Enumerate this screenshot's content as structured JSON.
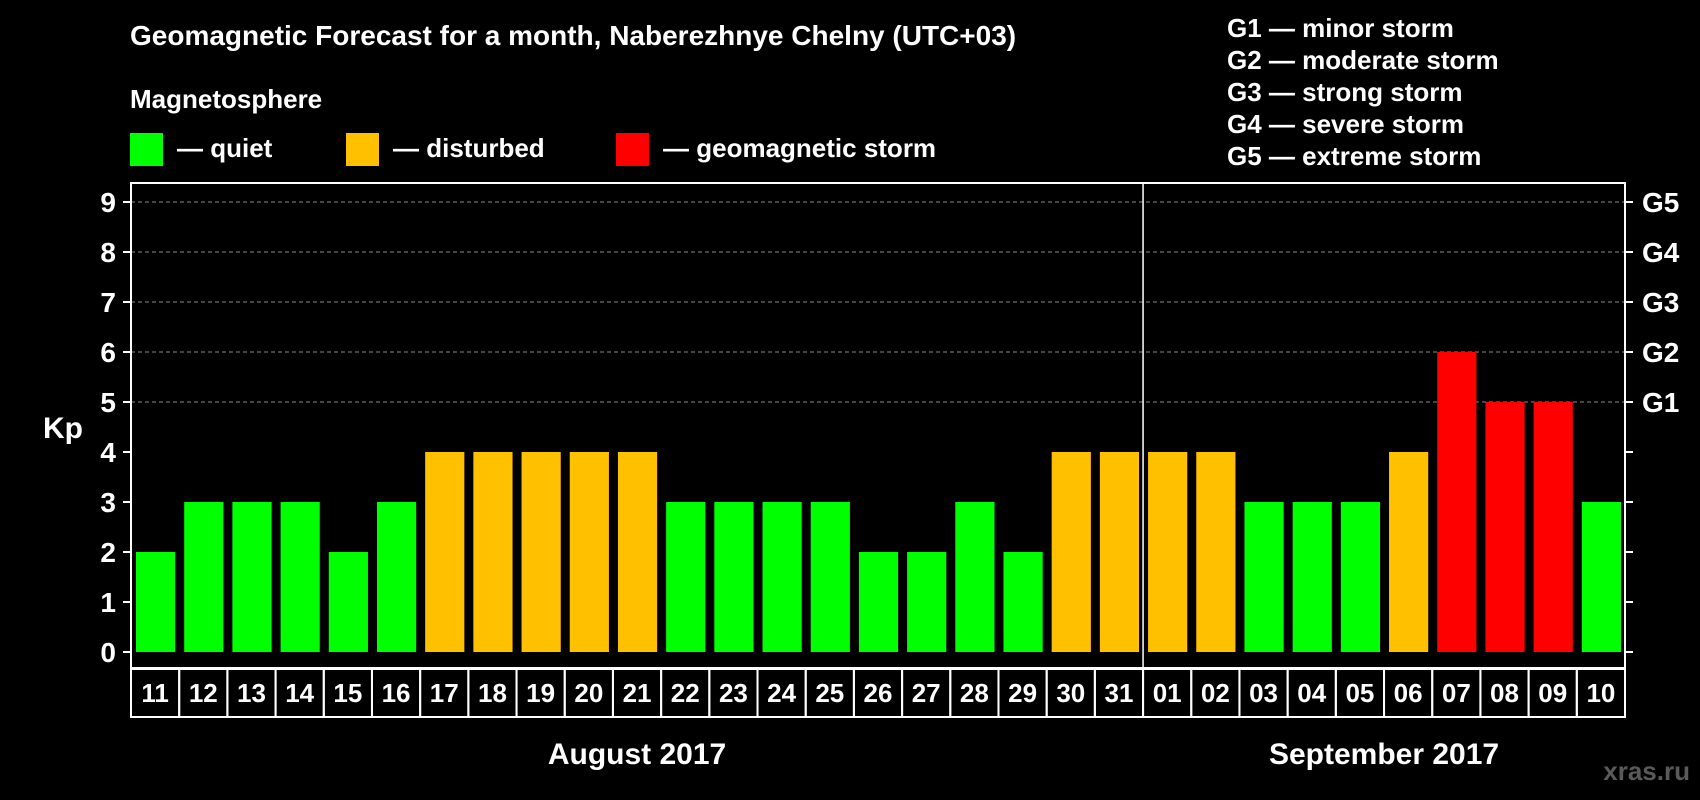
{
  "title": "Geomagnetic Forecast for a month, Naberezhnye Chelny (UTC+03)",
  "subtitle": "Magnetosphere",
  "legend": [
    {
      "label": "— quiet",
      "color": "#00ff00"
    },
    {
      "label": "— disturbed",
      "color": "#ffc000"
    },
    {
      "label": "— geomagnetic storm",
      "color": "#ff0000"
    }
  ],
  "g_scale": [
    "G1 — minor storm",
    "G2 — moderate storm",
    "G3 — strong storm",
    "G4 — severe storm",
    "G5 — extreme storm"
  ],
  "watermark": "xras.ru",
  "chart_data": {
    "type": "bar",
    "title": "Geomagnetic Forecast for a month, Naberezhnye Chelny (UTC+03)",
    "ylabel": "Kp",
    "ylim": [
      0,
      9
    ],
    "yticks": [
      "0",
      "1",
      "2",
      "3",
      "4",
      "5",
      "6",
      "7",
      "8",
      "9"
    ],
    "right_axis": [
      {
        "kp": 5,
        "label": "G1"
      },
      {
        "kp": 6,
        "label": "G2"
      },
      {
        "kp": 7,
        "label": "G3"
      },
      {
        "kp": 8,
        "label": "G4"
      },
      {
        "kp": 9,
        "label": "G5"
      }
    ],
    "gridlines_at": [
      5,
      6,
      7,
      8,
      9
    ],
    "categories": [
      "11",
      "12",
      "13",
      "14",
      "15",
      "16",
      "17",
      "18",
      "19",
      "20",
      "21",
      "22",
      "23",
      "24",
      "25",
      "26",
      "27",
      "28",
      "29",
      "30",
      "31",
      "01",
      "02",
      "03",
      "04",
      "05",
      "06",
      "07",
      "08",
      "09",
      "10"
    ],
    "values": [
      2,
      3,
      3,
      3,
      2,
      3,
      4,
      4,
      4,
      4,
      4,
      3,
      3,
      3,
      3,
      2,
      2,
      3,
      2,
      4,
      4,
      4,
      4,
      3,
      3,
      3,
      4,
      6,
      5,
      5,
      3
    ],
    "categories_per_month": [
      {
        "label": "August 2017",
        "from": 0,
        "to": 20
      },
      {
        "label": "September 2017",
        "from": 21,
        "to": 30
      }
    ],
    "month_divider_after_index": 20,
    "color_rule": {
      "quiet_max": 3,
      "disturbed": 4,
      "storm_min": 5
    }
  }
}
